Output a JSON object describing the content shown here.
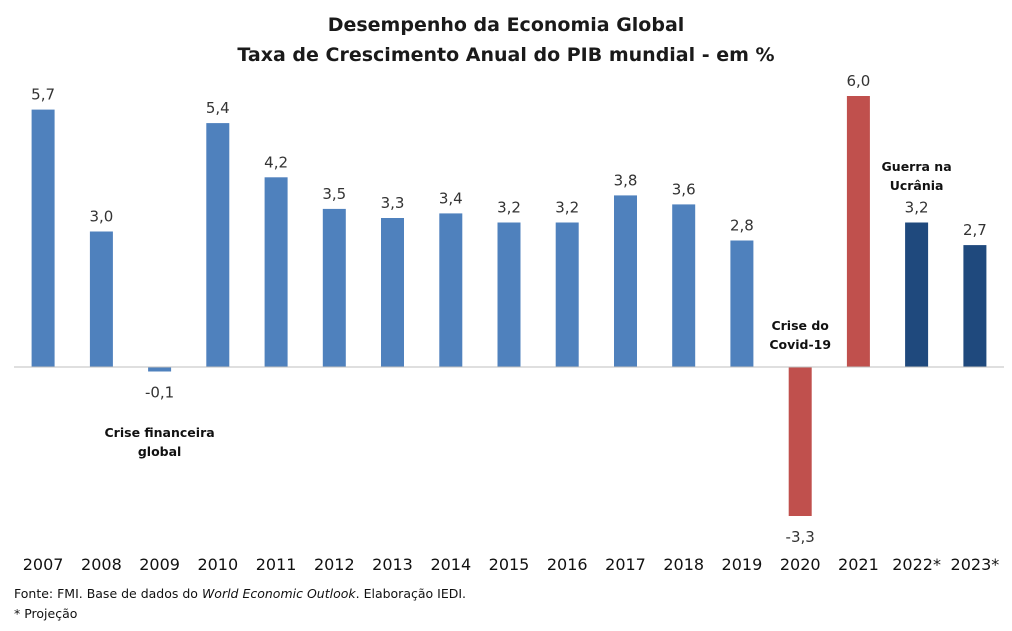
{
  "chart_data": {
    "type": "bar",
    "title": "Desempenho da Economia Global",
    "subtitle": "Taxa de Crescimento Anual do PIB mundial - em %",
    "categories": [
      "2007",
      "2008",
      "2009",
      "2010",
      "2011",
      "2012",
      "2013",
      "2014",
      "2015",
      "2016",
      "2017",
      "2018",
      "2019",
      "2020",
      "2021",
      "2022*",
      "2023*"
    ],
    "values": [
      5.7,
      3.0,
      -0.1,
      5.4,
      4.2,
      3.5,
      3.3,
      3.4,
      3.2,
      3.2,
      3.8,
      3.6,
      2.8,
      -3.3,
      6.0,
      3.2,
      2.7
    ],
    "value_labels": [
      "5,7",
      "3,0",
      "-0,1",
      "5,4",
      "4,2",
      "3,5",
      "3,3",
      "3,4",
      "3,2",
      "3,2",
      "3,8",
      "3,6",
      "2,8",
      "-3,3",
      "6,0",
      "3,2",
      "2,7"
    ],
    "bar_colors": [
      "#4f81bd",
      "#4f81bd",
      "#4f81bd",
      "#4f81bd",
      "#4f81bd",
      "#4f81bd",
      "#4f81bd",
      "#4f81bd",
      "#4f81bd",
      "#4f81bd",
      "#4f81bd",
      "#4f81bd",
      "#4f81bd",
      "#c0504d",
      "#c0504d",
      "#1f497d",
      "#1f497d"
    ],
    "ylim": [
      -3.3,
      6.0
    ],
    "grid": false,
    "xlabel": "",
    "ylabel": "",
    "annotations": [
      {
        "lines": [
          "Crise financeira",
          "global"
        ],
        "category": "2009"
      },
      {
        "lines": [
          "Crise do",
          "Covid-19"
        ],
        "category": "2020"
      },
      {
        "lines": [
          "Guerra na",
          "Ucrânia"
        ],
        "category": "2022*"
      }
    ]
  },
  "footer": {
    "source_prefix": "Fonte: FMI.  Base de dados do ",
    "source_italic": "World Economic Outlook",
    "source_suffix": ".  Elaboração IEDI.",
    "note": "* Projeção"
  }
}
